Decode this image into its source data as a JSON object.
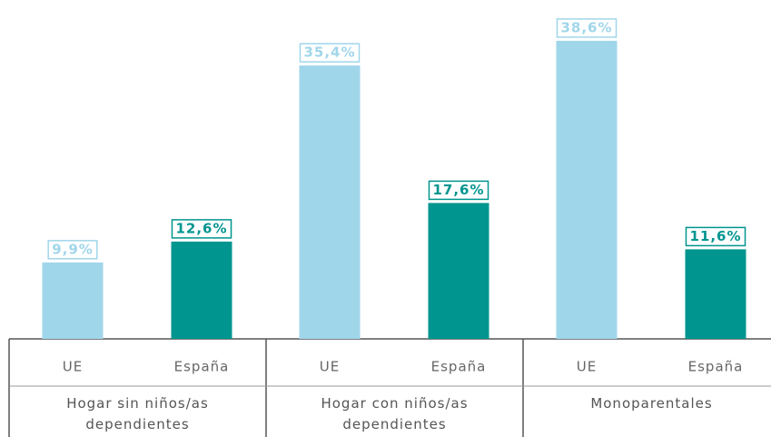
{
  "chart_data": {
    "type": "bar",
    "categories": [
      "Hogar sin niños/as dependientes",
      "Hogar con niños/as dependientes",
      "Monoparentales"
    ],
    "series": [
      {
        "name": "UE",
        "color": "#a0d6ea",
        "values": [
          9.9,
          35.4,
          38.6
        ],
        "value_labels": [
          "9,9%",
          "35,4%",
          "38,6%"
        ]
      },
      {
        "name": "España",
        "color": "#00958f",
        "values": [
          12.6,
          17.6,
          11.6
        ],
        "value_labels": [
          "12,6%",
          "17,6%",
          "11,6%"
        ]
      }
    ]
  }
}
